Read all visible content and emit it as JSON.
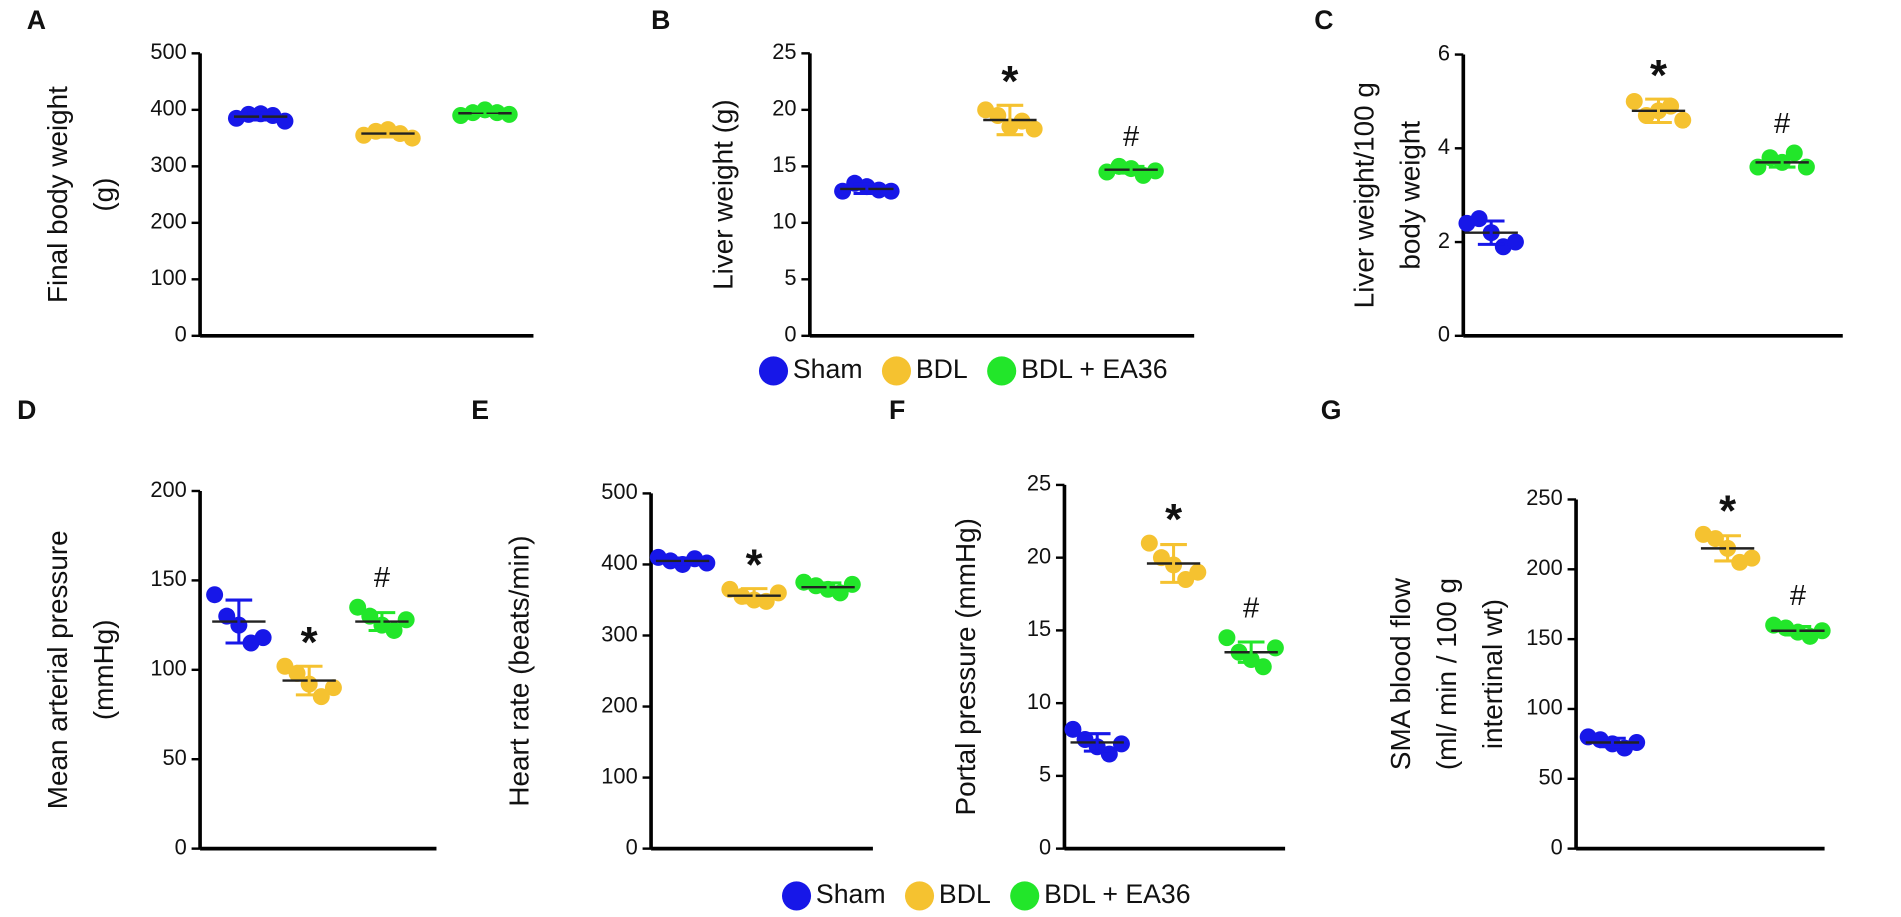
{
  "groups": [
    {
      "name": "Sham",
      "color": "#1717e8"
    },
    {
      "name": "BDL",
      "color": "#f5c230"
    },
    {
      "name": "BDL + EA36",
      "color": "#22e62a"
    }
  ],
  "chart_data": [
    {
      "type": "dot",
      "panel_label": "A",
      "y_label": [
        "Final body weight",
        "(g)"
      ],
      "ylim": [
        0,
        500
      ],
      "yticks": [
        0,
        100,
        200,
        300,
        400,
        500
      ],
      "series": [
        {
          "values": [
            385,
            392,
            393,
            390,
            380
          ],
          "mean": 388,
          "sd": 6,
          "annotation": null
        },
        {
          "values": [
            355,
            362,
            365,
            358,
            350
          ],
          "mean": 358,
          "sd": 6,
          "annotation": null
        },
        {
          "values": [
            390,
            395,
            400,
            395,
            392
          ],
          "mean": 394,
          "sd": 4,
          "annotation": null
        }
      ]
    },
    {
      "type": "dot",
      "panel_label": "B",
      "y_label": [
        "Liver weight (g)"
      ],
      "ylim": [
        0,
        25
      ],
      "yticks": [
        0,
        5,
        10,
        15,
        20,
        25
      ],
      "series": [
        {
          "values": [
            12.8,
            13.5,
            13.2,
            12.9,
            12.8
          ],
          "mean": 13.0,
          "sd": 0.4,
          "annotation": null
        },
        {
          "values": [
            20.0,
            19.5,
            18.5,
            19.0,
            18.3
          ],
          "mean": 19.1,
          "sd": 1.3,
          "annotation": "*"
        },
        {
          "values": [
            14.5,
            15.0,
            14.8,
            14.2,
            14.6
          ],
          "mean": 14.7,
          "sd": 0.3,
          "annotation": "#"
        }
      ]
    },
    {
      "type": "dot",
      "panel_label": "C",
      "y_label": [
        "Liver weight/100 g",
        "body weight"
      ],
      "ylim": [
        0,
        6
      ],
      "yticks": [
        0,
        2,
        4,
        6
      ],
      "series": [
        {
          "values": [
            2.4,
            2.5,
            2.2,
            1.9,
            2.0
          ],
          "mean": 2.2,
          "sd": 0.25,
          "annotation": null
        },
        {
          "values": [
            5.0,
            4.7,
            4.8,
            4.9,
            4.6
          ],
          "mean": 4.8,
          "sd": 0.25,
          "annotation": "*"
        },
        {
          "values": [
            3.6,
            3.8,
            3.7,
            3.9,
            3.6
          ],
          "mean": 3.7,
          "sd": 0.1,
          "annotation": "#"
        }
      ]
    },
    {
      "type": "dot",
      "panel_label": "D",
      "y_label": [
        "Mean arterial pressure",
        "(mmHg)"
      ],
      "ylim": [
        0,
        200
      ],
      "yticks": [
        0,
        50,
        100,
        150,
        200
      ],
      "series": [
        {
          "values": [
            142,
            130,
            125,
            115,
            118
          ],
          "mean": 127,
          "sd": 12,
          "annotation": null
        },
        {
          "values": [
            102,
            98,
            92,
            85,
            90
          ],
          "mean": 94,
          "sd": 8,
          "annotation": "*"
        },
        {
          "values": [
            135,
            130,
            125,
            122,
            128
          ],
          "mean": 127,
          "sd": 5,
          "annotation": "#"
        }
      ]
    },
    {
      "type": "dot",
      "panel_label": "E",
      "y_label": [
        "Heart rate (beats/min)"
      ],
      "ylim": [
        0,
        500
      ],
      "yticks": [
        0,
        100,
        200,
        300,
        400,
        500
      ],
      "series": [
        {
          "values": [
            410,
            405,
            400,
            408,
            402
          ],
          "mean": 405,
          "sd": 4,
          "annotation": null
        },
        {
          "values": [
            365,
            355,
            350,
            348,
            360
          ],
          "mean": 356,
          "sd": 10,
          "annotation": "*"
        },
        {
          "values": [
            375,
            370,
            365,
            360,
            372
          ],
          "mean": 368,
          "sd": 6,
          "annotation": null
        }
      ]
    },
    {
      "type": "dot",
      "panel_label": "F",
      "y_label": [
        "Portal pressure (mmHg)"
      ],
      "ylim": [
        0,
        25
      ],
      "yticks": [
        0,
        5,
        10,
        15,
        20,
        25
      ],
      "series": [
        {
          "values": [
            8.2,
            7.5,
            7.0,
            6.5,
            7.2
          ],
          "mean": 7.3,
          "sd": 0.6,
          "annotation": null
        },
        {
          "values": [
            21.0,
            20.0,
            19.5,
            18.5,
            19.0
          ],
          "mean": 19.6,
          "sd": 1.3,
          "annotation": "*"
        },
        {
          "values": [
            14.5,
            13.5,
            13.0,
            12.5,
            13.8
          ],
          "mean": 13.5,
          "sd": 0.7,
          "annotation": "#"
        }
      ]
    },
    {
      "type": "dot",
      "panel_label": "G",
      "y_label": [
        "SMA blood flow",
        "(ml/ min / 100 g",
        "intertinal wt)"
      ],
      "ylim": [
        0,
        250
      ],
      "yticks": [
        0,
        50,
        100,
        150,
        200,
        250
      ],
      "series": [
        {
          "values": [
            80,
            78,
            75,
            72,
            76
          ],
          "mean": 76,
          "sd": 3,
          "annotation": null
        },
        {
          "values": [
            225,
            222,
            215,
            205,
            208
          ],
          "mean": 215,
          "sd": 9,
          "annotation": "*"
        },
        {
          "values": [
            160,
            158,
            155,
            152,
            156
          ],
          "mean": 156,
          "sd": 3,
          "annotation": "#"
        }
      ]
    }
  ]
}
